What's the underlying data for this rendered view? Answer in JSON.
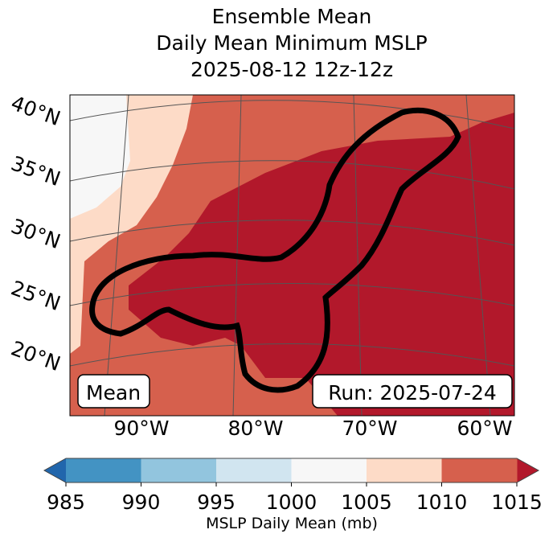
{
  "title": {
    "line1": "Ensemble Mean",
    "line2": "Daily Mean Minimum MSLP",
    "line3": "2025-08-12 12z-12z"
  },
  "map": {
    "lat_labels": [
      "40°N",
      "35°N",
      "30°N",
      "25°N",
      "20°N"
    ],
    "lon_labels": [
      "90°W",
      "80°W",
      "70°W",
      "60°W"
    ],
    "mean_box": "Mean",
    "run_box": "Run: 2025-07-24"
  },
  "colorbar": {
    "ticks": [
      "985",
      "990",
      "995",
      "1000",
      "1005",
      "1010",
      "1015"
    ],
    "label": "MSLP Daily Mean (mb)",
    "colors": [
      "#4393c3",
      "#92c5de",
      "#d1e5f0",
      "#f7f7f7",
      "#fddbc7",
      "#d6604d"
    ],
    "under_color": "#2166ac",
    "over_color": "#b2182b"
  }
}
